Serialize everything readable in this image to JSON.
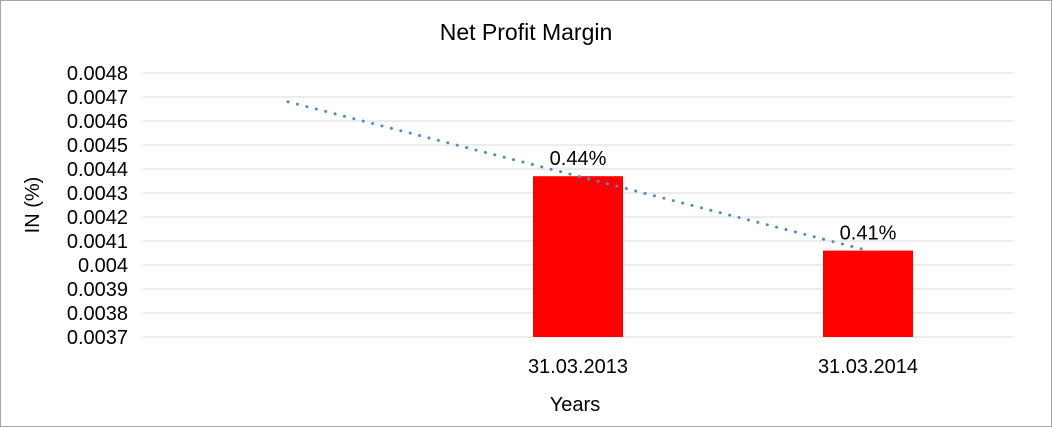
{
  "chart_data": {
    "type": "bar",
    "title": "Net Profit Margin",
    "xlabel": "Years",
    "ylabel": "IN (%)",
    "categories": [
      "31.03.2013",
      "31.03.2014"
    ],
    "values": [
      0.00437,
      0.00406
    ],
    "bar_value_labels": [
      "0.44%",
      "0.41%"
    ],
    "ylim": [
      0.0037,
      0.0048
    ],
    "ytick_labels": [
      "0.0048",
      "0.0047",
      "0.0046",
      "0.0045",
      "0.0044",
      "0.0043",
      "0.0042",
      "0.0041",
      "0.004",
      "0.0039",
      "0.0038",
      "0.0037"
    ],
    "grid": true,
    "legend": "none",
    "category_slots": 3,
    "bar_slots": [
      1,
      2
    ],
    "colors": {
      "bar": "#ff0000",
      "trendline": "#4e8cc9",
      "gridline": "#d9d9d9",
      "text": "#000000",
      "frame_border": "#a6a6a6",
      "background": "#ffffff"
    },
    "trendline": {
      "style": "dotted",
      "points_slot_value": [
        [
          0,
          0.00468
        ],
        [
          2,
          0.00406
        ]
      ]
    }
  }
}
